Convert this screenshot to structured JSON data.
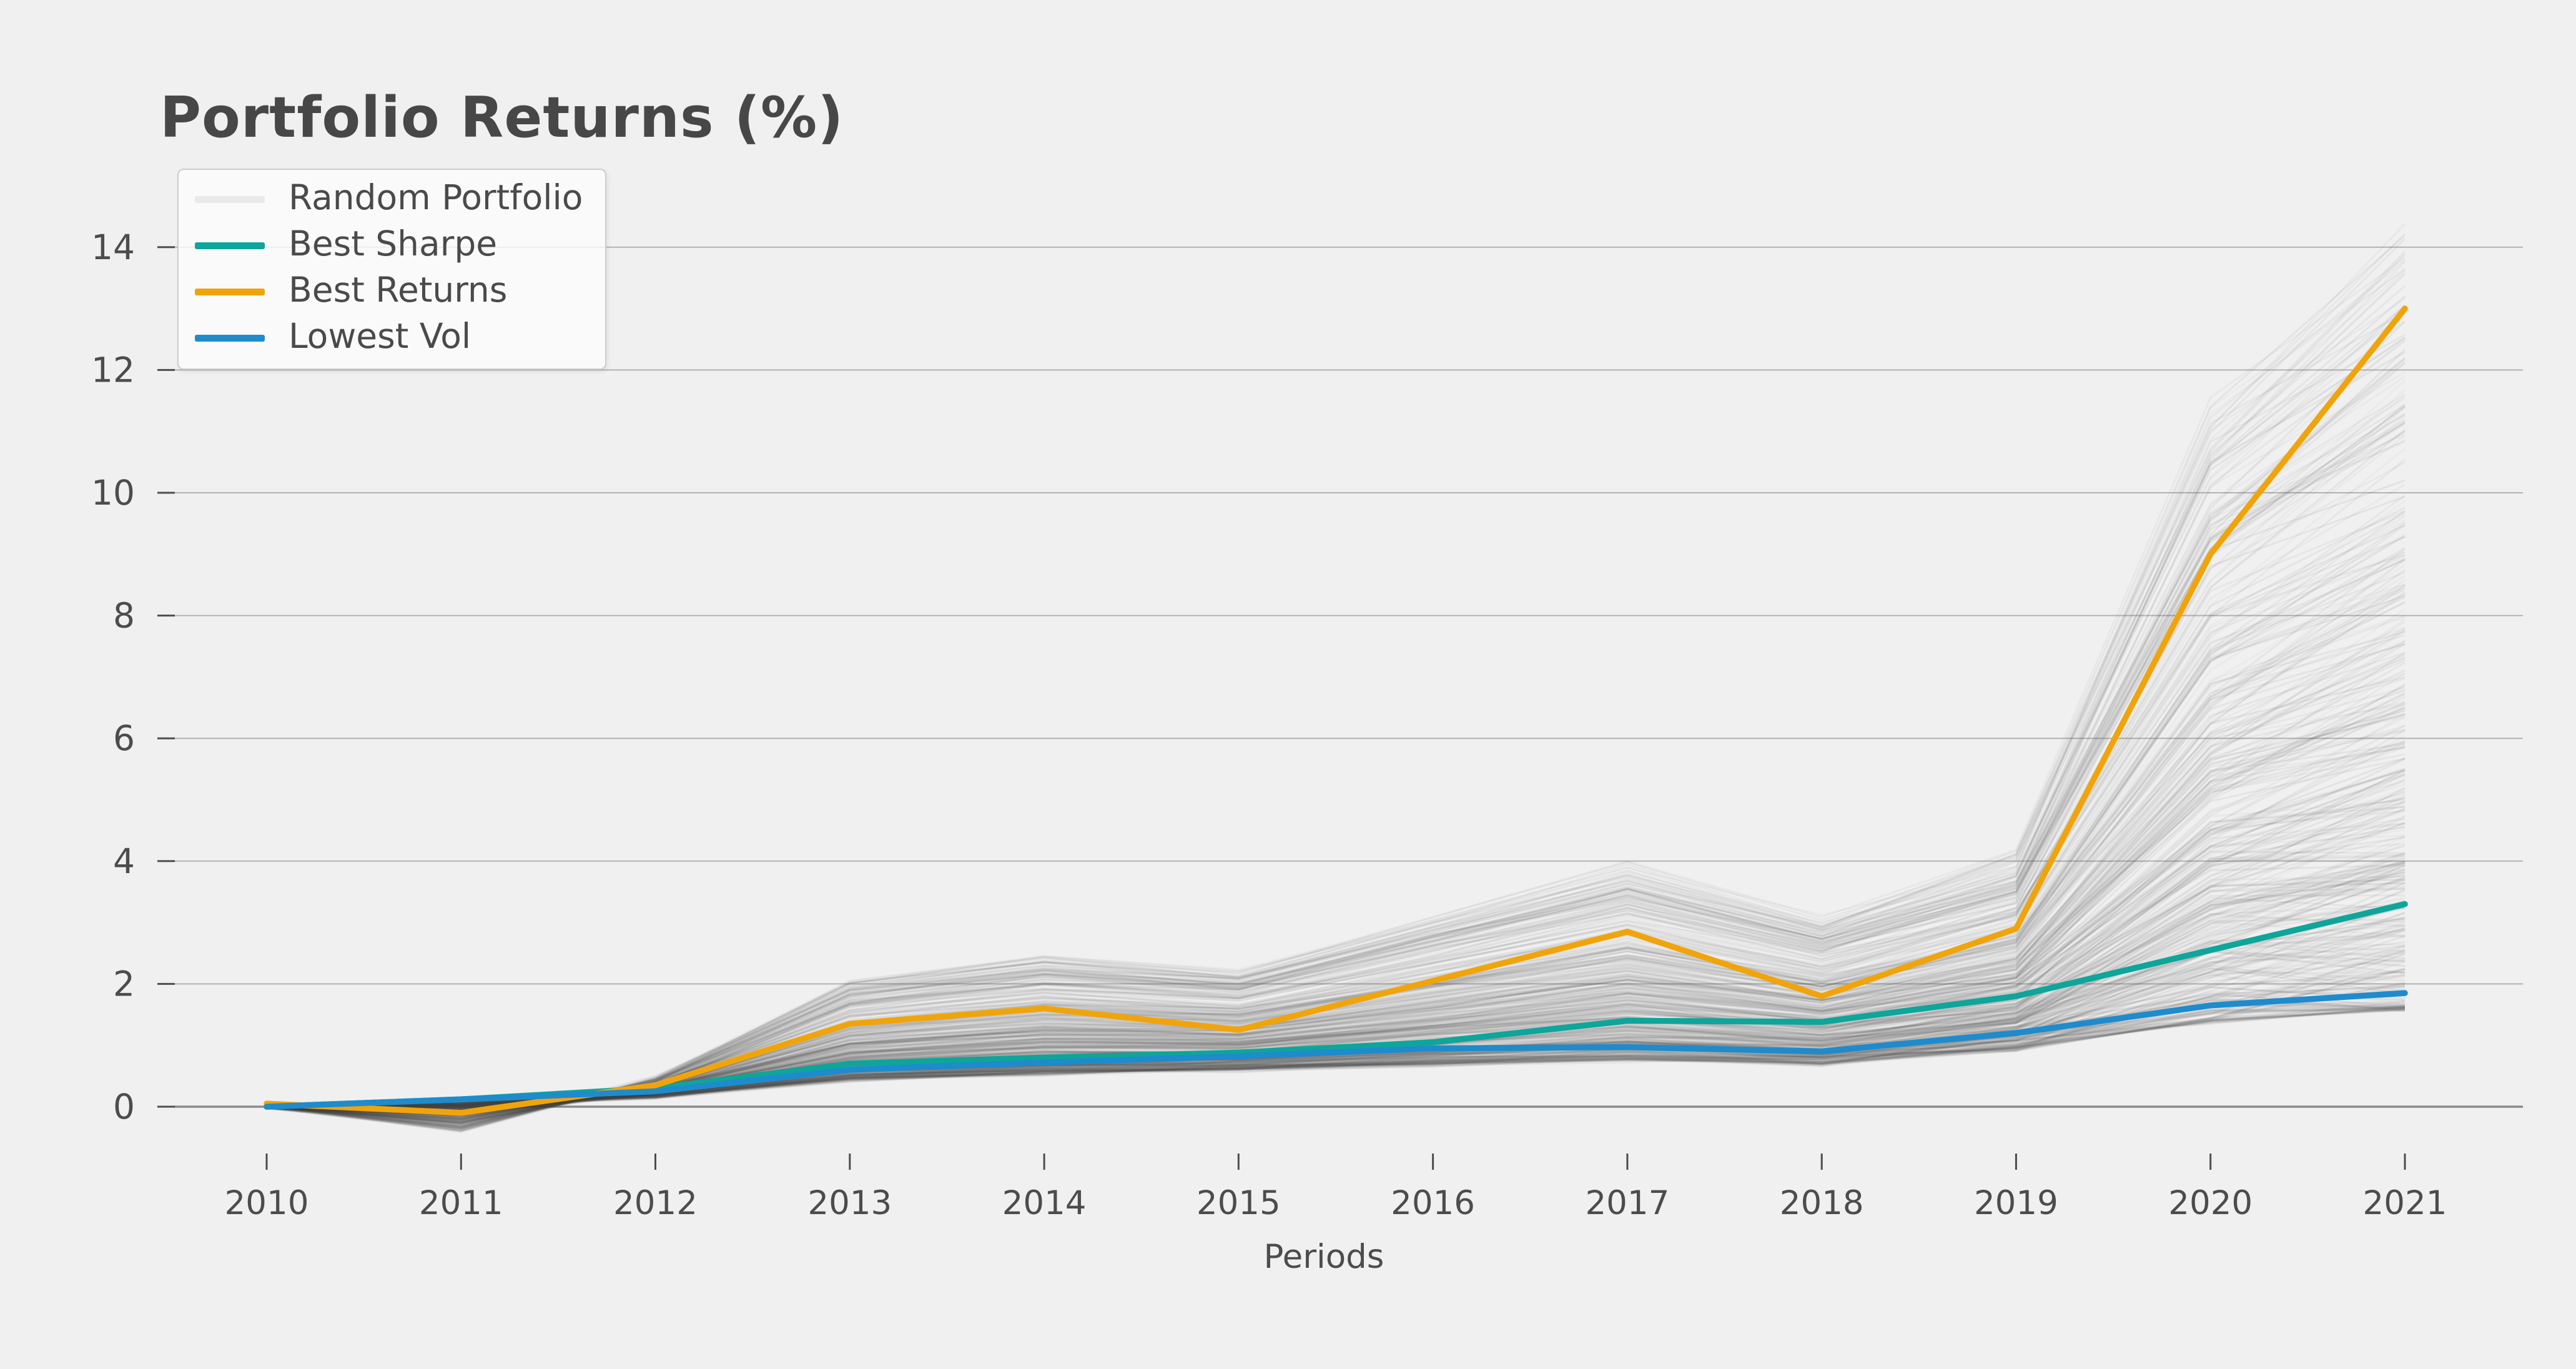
{
  "title": "Portfolio Returns (%)",
  "legend": {
    "items": [
      {
        "label": "Random Portfolio",
        "swatch_color": "#e9e9e9"
      },
      {
        "label": "Best Sharpe",
        "swatch_color": "#0ea59a"
      },
      {
        "label": "Best Returns",
        "swatch_color": "#f0a40c"
      },
      {
        "label": "Lowest Vol",
        "swatch_color": "#1e8bcc"
      }
    ]
  },
  "colors": {
    "background": "#f0f0f0",
    "grid_line": "#b2b2b2",
    "zero_line": "#8a8a8a",
    "tick_mark": "#4d4d4d",
    "tick_text": "#4c4c4c",
    "best_sharpe": "#0ea59a",
    "best_returns": "#f0a40c",
    "lowest_vol": "#1e8bcc",
    "random_portfolio": "#4a4a4a"
  },
  "chart_data": {
    "type": "line",
    "title": "Portfolio Returns (%)",
    "xlabel": "Periods",
    "ylabel": "",
    "x": [
      2010,
      2011,
      2012,
      2013,
      2014,
      2015,
      2016,
      2017,
      2018,
      2019,
      2020,
      2021
    ],
    "x_tick_labels": [
      "2010",
      "2011",
      "2012",
      "2013",
      "2014",
      "2015",
      "2016",
      "2017",
      "2018",
      "2019",
      "2020",
      "2021"
    ],
    "yticks": [
      0,
      2,
      4,
      6,
      8,
      10,
      12,
      14
    ],
    "y_tick_labels": [
      "0",
      "2",
      "4",
      "6",
      "8",
      "10",
      "12",
      "14"
    ],
    "ylim": [
      -0.55,
      15.2
    ],
    "grid": true,
    "legend_position": "upper-left",
    "series": [
      {
        "name": "Best Sharpe",
        "values": [
          0.0,
          0.12,
          0.3,
          0.7,
          0.8,
          0.88,
          1.05,
          1.4,
          1.38,
          1.8,
          2.55,
          3.3
        ]
      },
      {
        "name": "Best Returns",
        "values": [
          0.05,
          -0.1,
          0.35,
          1.35,
          1.6,
          1.25,
          2.05,
          2.85,
          1.8,
          2.9,
          9.0,
          13.0
        ]
      },
      {
        "name": "Lowest Vol",
        "values": [
          0.0,
          0.12,
          0.25,
          0.6,
          0.72,
          0.82,
          0.95,
          0.97,
          0.9,
          1.2,
          1.65,
          1.85
        ]
      }
    ],
    "random_portfolios": {
      "name": "Random Portfolio",
      "count": 430,
      "seed": 7,
      "envelope_low": [
        0.0,
        0.05,
        0.18,
        0.45,
        0.55,
        0.62,
        0.7,
        0.78,
        0.72,
        0.95,
        1.4,
        1.6
      ],
      "envelope_high": [
        0.0,
        -0.38,
        0.45,
        2.0,
        2.4,
        2.15,
        3.0,
        3.85,
        3.0,
        4.05,
        11.2,
        13.9
      ]
    }
  }
}
